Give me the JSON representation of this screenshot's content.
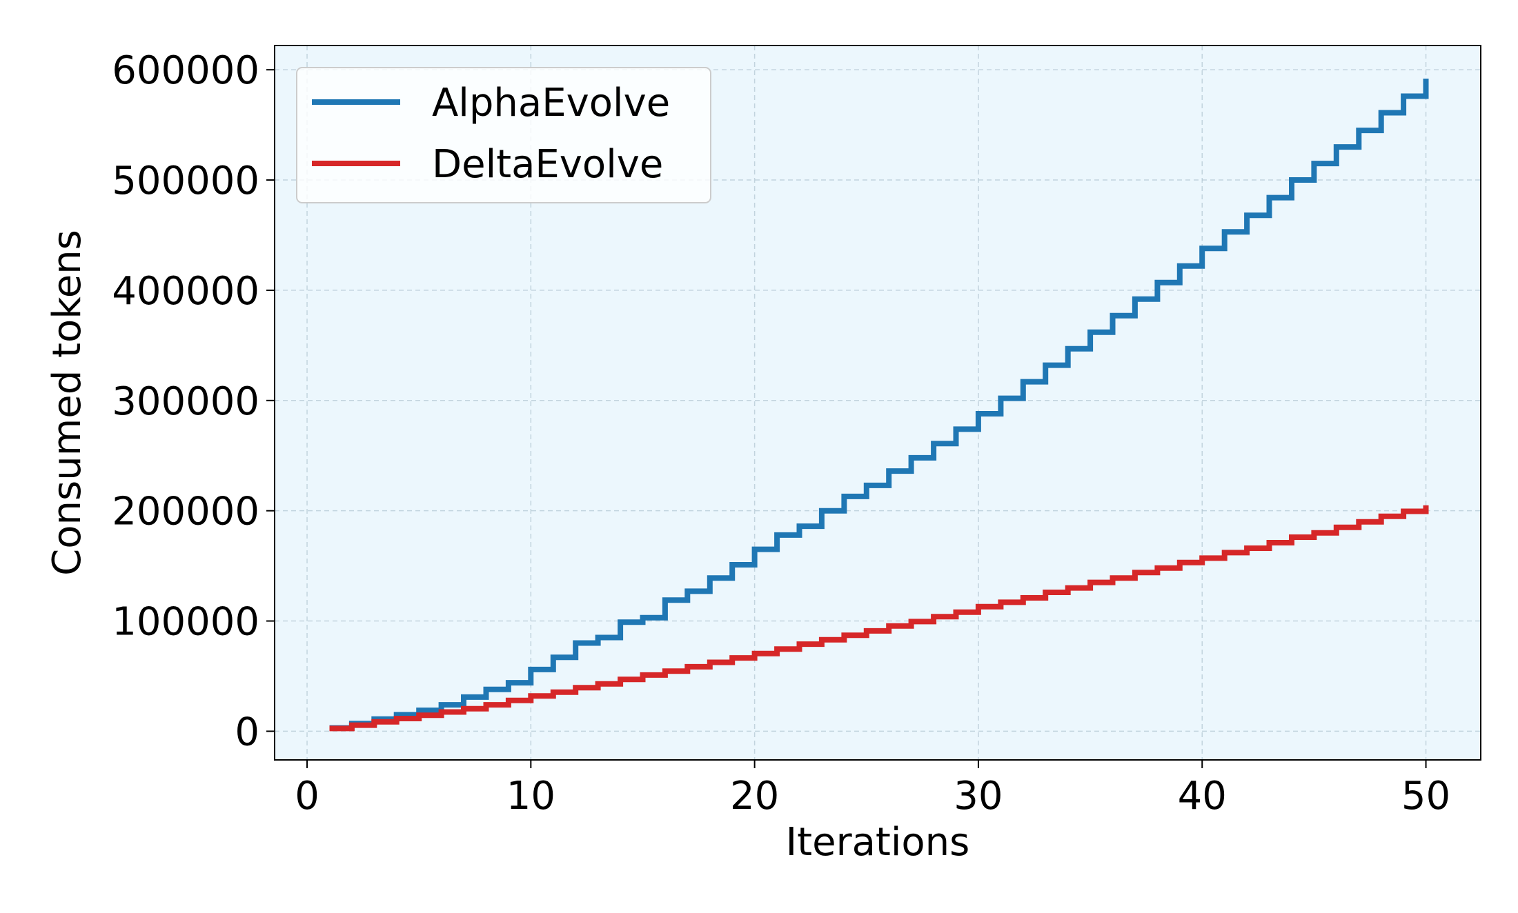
{
  "chart_data": {
    "type": "line",
    "step": "post",
    "xlabel": "Iterations",
    "ylabel": "Consumed tokens",
    "xlim": [
      -1.45,
      52.45
    ],
    "ylim": [
      -26000,
      622000
    ],
    "xticks": [
      0,
      10,
      20,
      30,
      40,
      50
    ],
    "xtick_labels": [
      "0",
      "10",
      "20",
      "30",
      "40",
      "50"
    ],
    "yticks": [
      0,
      100000,
      200000,
      300000,
      400000,
      500000,
      600000
    ],
    "ytick_labels": [
      "0",
      "100000",
      "200000",
      "300000",
      "400000",
      "500000",
      "600000"
    ],
    "grid": true,
    "legend_position": "upper left",
    "plot_background": "#ecf7fd",
    "x": [
      1,
      2,
      3,
      4,
      5,
      6,
      7,
      8,
      9,
      10,
      11,
      12,
      13,
      14,
      15,
      16,
      17,
      18,
      19,
      20,
      21,
      22,
      23,
      24,
      25,
      26,
      27,
      28,
      29,
      30,
      31,
      32,
      33,
      34,
      35,
      36,
      37,
      38,
      39,
      40,
      41,
      42,
      43,
      44,
      45,
      46,
      47,
      48,
      49,
      50
    ],
    "series": [
      {
        "name": "AlphaEvolve",
        "color": "#1f77b4",
        "values": [
          3000,
          7000,
          11000,
          15000,
          19000,
          24000,
          31000,
          38000,
          44000,
          56000,
          67000,
          80000,
          85000,
          99000,
          103000,
          119000,
          127000,
          139000,
          151000,
          165000,
          178000,
          186000,
          200000,
          213000,
          223000,
          236000,
          248000,
          261000,
          274000,
          288000,
          302000,
          317000,
          332000,
          347000,
          362000,
          377000,
          392000,
          407000,
          422000,
          438000,
          453000,
          468000,
          484000,
          500000,
          515000,
          530000,
          545000,
          561000,
          576000,
          592000
        ]
      },
      {
        "name": "DeltaEvolve",
        "color": "#d62728",
        "values": [
          2500,
          5500,
          8500,
          11500,
          14500,
          17500,
          20500,
          24000,
          28000,
          32000,
          35500,
          39500,
          43000,
          47000,
          51000,
          54500,
          58500,
          62500,
          66500,
          70500,
          74500,
          79000,
          83000,
          87000,
          91000,
          95500,
          99500,
          104000,
          108000,
          113000,
          117000,
          121000,
          126000,
          130000,
          135000,
          139000,
          144000,
          148000,
          153000,
          157000,
          162000,
          166000,
          171000,
          176000,
          180000,
          185000,
          190000,
          195000,
          199500,
          205000
        ]
      }
    ]
  }
}
